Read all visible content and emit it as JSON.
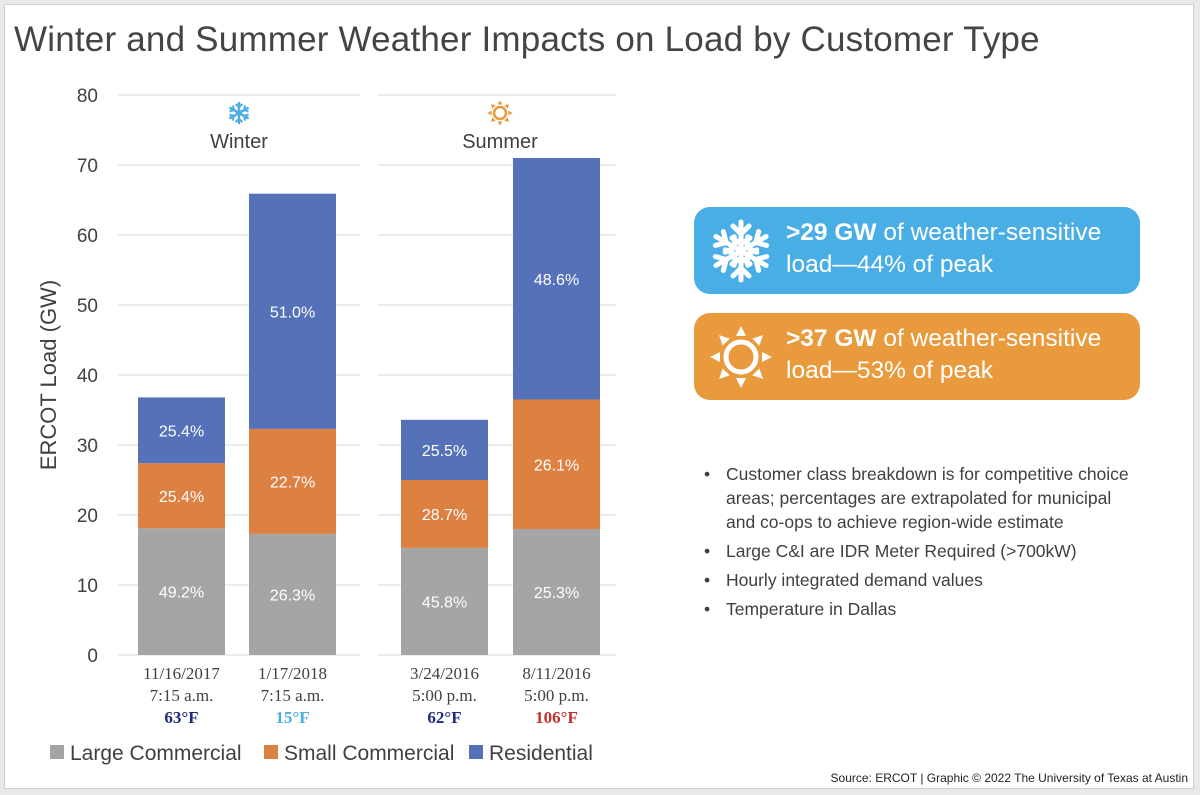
{
  "title": "Winter and Summer Weather Impacts on Load by Customer Type",
  "colors": {
    "large_commercial": "#a5a5a5",
    "small_commercial": "#dd8143",
    "residential": "#5572b9",
    "winter_accent": "#4aaee6",
    "summer_accent": "#e89a3d",
    "temp_cold_dark": "#1f2a7a",
    "temp_cold_light": "#4aaee6",
    "temp_hot": "#c0302a"
  },
  "chart_data": {
    "type": "bar",
    "stacked": true,
    "ylabel": "ERCOT Load (GW)",
    "ylim": [
      0,
      80
    ],
    "yticks": [
      "0",
      "10",
      "20",
      "30",
      "40",
      "50",
      "60",
      "70",
      "80"
    ],
    "grid": true,
    "groups": [
      {
        "label": "Winter",
        "icon": "snowflake-icon",
        "bars": [
          0,
          1
        ]
      },
      {
        "label": "Summer",
        "icon": "sun-icon",
        "bars": [
          2,
          3
        ]
      }
    ],
    "categories": [
      {
        "date": "11/16/2017",
        "time": "7:15 a.m.",
        "temp": "63°F",
        "temp_color": "#1f2a7a"
      },
      {
        "date": "1/17/2018",
        "time": "7:15 a.m.",
        "temp": "15°F",
        "temp_color": "#4aaee6"
      },
      {
        "date": "3/24/2016",
        "time": "5:00 p.m.",
        "temp": "62°F",
        "temp_color": "#1f2a7a"
      },
      {
        "date": "8/11/2016",
        "time": "5:00 p.m.",
        "temp": "106°F",
        "temp_color": "#c0302a"
      }
    ],
    "series": [
      {
        "name": "Large Commercial",
        "color": "#a5a5a5",
        "values": [
          18.1,
          17.3,
          15.3,
          18.0
        ],
        "labels": [
          "49.2%",
          "26.3%",
          "45.8%",
          "25.3%"
        ]
      },
      {
        "name": "Small Commercial",
        "color": "#dd8143",
        "values": [
          9.3,
          15.0,
          9.7,
          18.5
        ],
        "labels": [
          "25.4%",
          "22.7%",
          "28.7%",
          "26.1%"
        ]
      },
      {
        "name": "Residential",
        "color": "#5572b9",
        "values": [
          9.4,
          33.6,
          8.6,
          34.5
        ],
        "labels": [
          "25.4%",
          "51.0%",
          "25.5%",
          "48.6%"
        ]
      }
    ],
    "legend": "bottom"
  },
  "callouts": [
    {
      "bold": ">29 GW",
      "text": " of weather-sensitive load—44% of peak",
      "icon": "snowflake-icon",
      "color": "#4aaee6"
    },
    {
      "bold": ">37 GW",
      "text": " of weather-sensitive load—53% of peak",
      "icon": "sun-icon",
      "color": "#e89a3d"
    }
  ],
  "notes": [
    "Customer class breakdown is for competitive choice areas; percentages are extrapolated for municipal and co-ops to achieve region-wide estimate",
    "Large C&I are IDR Meter Required (>700kW)",
    "Hourly integrated demand values",
    "Temperature in Dallas"
  ],
  "source": "Source: ERCOT | Graphic © 2022 The University of Texas at Austin"
}
